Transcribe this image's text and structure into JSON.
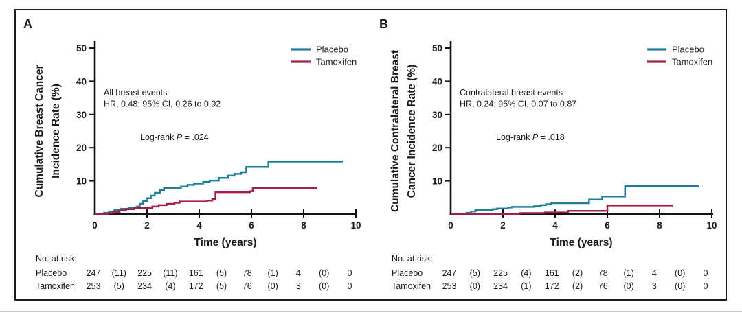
{
  "colors": {
    "placebo": "#1f7f98",
    "tamoxifen": "#a51e45",
    "axis": "#111111",
    "text": "#1a1a1a"
  },
  "legend": {
    "items": [
      {
        "label": "Placebo",
        "color_key": "placebo"
      },
      {
        "label": "Tamoxifen",
        "color_key": "tamoxifen"
      }
    ]
  },
  "chart_data": [
    {
      "panel_letter": "A",
      "type": "line",
      "step": true,
      "xlabel": "Time (years)",
      "ylabel_lines": [
        "Cumulative Breast Cancer",
        "Incidence Rate (%)"
      ],
      "xlim": [
        0,
        10
      ],
      "ylim": [
        0,
        50
      ],
      "xticks": [
        0,
        2,
        4,
        6,
        8,
        10
      ],
      "yticks": [
        10,
        20,
        30,
        40,
        50
      ],
      "grid": false,
      "legend_position": "top-right",
      "annotation_lines": [
        "All breast events",
        "HR, 0.48; 95% CI, 0.26 to 0.92"
      ],
      "log_rank": {
        "pre": "Log-rank ",
        "italic": "P",
        "post": " = .024"
      },
      "series": [
        {
          "name": "Placebo",
          "color_key": "placebo",
          "points": [
            [
              0.35,
              0.4
            ],
            [
              0.55,
              0.8
            ],
            [
              0.75,
              1.2
            ],
            [
              1.0,
              1.6
            ],
            [
              1.3,
              1.9
            ],
            [
              1.6,
              2.3
            ],
            [
              1.72,
              3.1
            ],
            [
              1.85,
              3.9
            ],
            [
              2.0,
              4.8
            ],
            [
              2.15,
              5.6
            ],
            [
              2.3,
              6.4
            ],
            [
              2.5,
              7.2
            ],
            [
              2.65,
              7.8
            ],
            [
              3.3,
              8.3
            ],
            [
              3.55,
              8.8
            ],
            [
              3.8,
              9.2
            ],
            [
              4.15,
              9.7
            ],
            [
              4.4,
              10.1
            ],
            [
              4.75,
              10.9
            ],
            [
              5.1,
              11.6
            ],
            [
              5.35,
              12.1
            ],
            [
              5.6,
              12.6
            ],
            [
              5.8,
              14.2
            ],
            [
              6.65,
              15.8
            ],
            [
              9.5,
              15.8
            ]
          ]
        },
        {
          "name": "Tamoxifen",
          "color_key": "tamoxifen",
          "points": [
            [
              0.5,
              0.3
            ],
            [
              0.7,
              0.7
            ],
            [
              0.95,
              1.1
            ],
            [
              1.2,
              1.5
            ],
            [
              1.5,
              1.9
            ],
            [
              2.2,
              2.3
            ],
            [
              2.45,
              2.7
            ],
            [
              2.75,
              3.1
            ],
            [
              3.05,
              3.4
            ],
            [
              3.25,
              3.8
            ],
            [
              4.3,
              4.1
            ],
            [
              4.5,
              4.5
            ],
            [
              4.62,
              6.6
            ],
            [
              5.95,
              6.9
            ],
            [
              6.05,
              7.8
            ],
            [
              8.5,
              7.8
            ]
          ]
        }
      ],
      "risk_table": {
        "header": "No. at risk:",
        "rows": [
          {
            "label": "Placebo",
            "values": [
              "247",
              "(11)",
              "225",
              "(11)",
              "161",
              "(5)",
              "78",
              "(1)",
              "4",
              "(0)",
              "0"
            ]
          },
          {
            "label": "Tamoxifen",
            "values": [
              "253",
              "(5)",
              "234",
              "(4)",
              "172",
              "(5)",
              "76",
              "(0)",
              "3",
              "(0)",
              "0"
            ]
          }
        ]
      }
    },
    {
      "panel_letter": "B",
      "type": "line",
      "step": true,
      "xlabel": "Time (years)",
      "ylabel_lines": [
        "Cumulative Contralateral Breast",
        "Cancer Incidence Rate (%)"
      ],
      "xlim": [
        0,
        10
      ],
      "ylim": [
        0,
        50
      ],
      "xticks": [
        0,
        2,
        4,
        6,
        8,
        10
      ],
      "yticks": [
        10,
        20,
        30,
        40,
        50
      ],
      "grid": false,
      "legend_position": "top-right",
      "annotation_lines": [
        "Contralateral breast events",
        "HR, 0.24; 95% CI, 0.07 to 0.87"
      ],
      "log_rank": {
        "pre": "Log-rank ",
        "italic": "P",
        "post": " = .018"
      },
      "series": [
        {
          "name": "Placebo",
          "color_key": "placebo",
          "points": [
            [
              0.6,
              0.4
            ],
            [
              0.78,
              0.8
            ],
            [
              0.95,
              1.2
            ],
            [
              1.62,
              1.5
            ],
            [
              1.78,
              1.7
            ],
            [
              2.2,
              2.0
            ],
            [
              2.35,
              2.2
            ],
            [
              3.2,
              2.4
            ],
            [
              3.45,
              2.7
            ],
            [
              3.65,
              3.0
            ],
            [
              3.85,
              3.3
            ],
            [
              5.3,
              4.4
            ],
            [
              5.8,
              5.3
            ],
            [
              6.68,
              8.4
            ],
            [
              9.5,
              8.4
            ]
          ]
        },
        {
          "name": "Tamoxifen",
          "color_key": "tamoxifen",
          "points": [
            [
              2.65,
              0.3
            ],
            [
              3.6,
              0.5
            ],
            [
              4.5,
              1.0
            ],
            [
              6.0,
              2.6
            ],
            [
              8.5,
              2.6
            ]
          ]
        }
      ],
      "risk_table": {
        "header": "No. at risk:",
        "rows": [
          {
            "label": "Placebo",
            "values": [
              "247",
              "(5)",
              "225",
              "(4)",
              "161",
              "(2)",
              "78",
              "(1)",
              "4",
              "(0)",
              "0"
            ]
          },
          {
            "label": "Tamoxifen",
            "values": [
              "253",
              "(0)",
              "234",
              "(1)",
              "172",
              "(2)",
              "76",
              "(0)",
              "3",
              "(0)",
              "0"
            ]
          }
        ]
      }
    }
  ]
}
